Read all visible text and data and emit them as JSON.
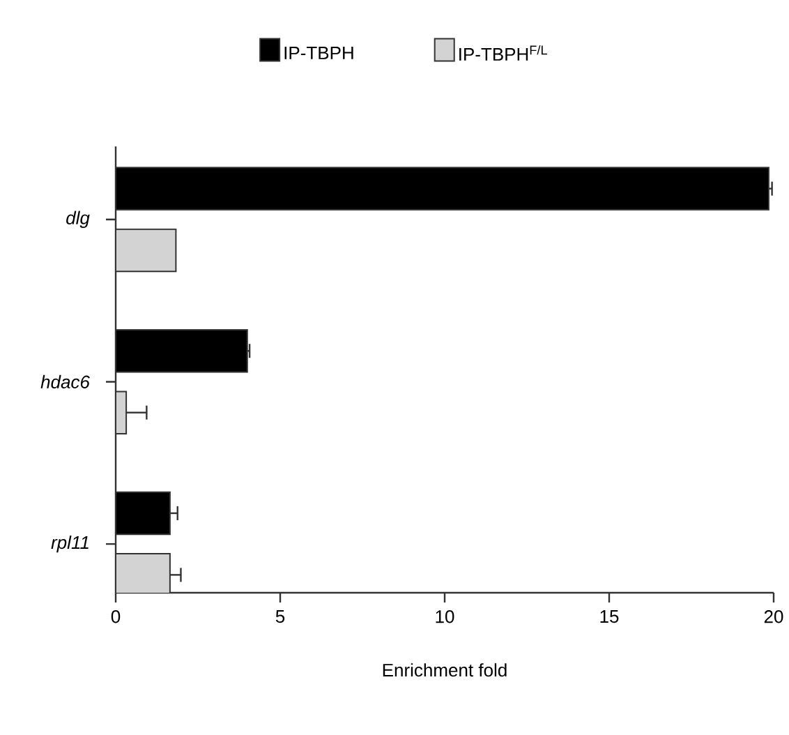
{
  "chart_data": {
    "type": "bar",
    "orientation": "horizontal",
    "xlabel": "Enrichment fold",
    "categories": [
      "dlg",
      "hdac6",
      "rpl11"
    ],
    "series": [
      {
        "name": "IP-TBPH",
        "color": "#000000",
        "values": [
          19.85,
          4.0,
          1.65
        ],
        "errors": [
          [
            19.85,
            19.95
          ],
          [
            4.0,
            4.07
          ],
          [
            1.65,
            1.88
          ]
        ]
      },
      {
        "name": "IP-TBPH$^{F/L}$",
        "color": "#d3d3d3",
        "values": [
          1.83,
          0.32,
          1.65
        ],
        "errors": [
          null,
          [
            0.32,
            0.94
          ],
          [
            1.65,
            1.98
          ]
        ]
      }
    ],
    "xlim": [
      0,
      20
    ],
    "xticks": [
      0,
      5,
      10,
      15,
      20
    ],
    "grid": false,
    "legend": "top"
  }
}
